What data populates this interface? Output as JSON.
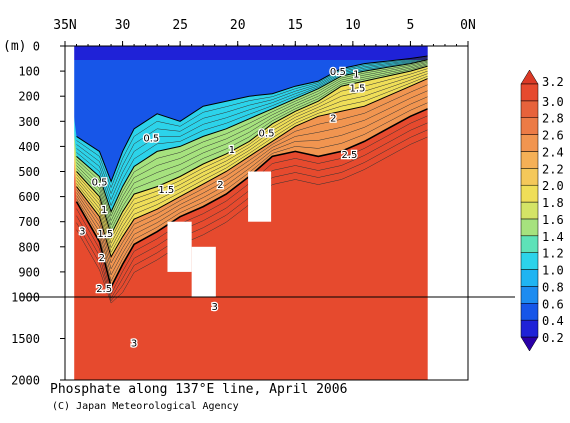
{
  "chart_data": {
    "type": "heatmap",
    "title": "Phosphate along 137°E line, April 2006",
    "credit": "(C) Japan Meteorological Agency",
    "xlabel": "",
    "ylabel": "(m)",
    "x_ticks": [
      {
        "value": 35,
        "label": "35N"
      },
      {
        "value": 30,
        "label": "30"
      },
      {
        "value": 25,
        "label": "25"
      },
      {
        "value": 20,
        "label": "20"
      },
      {
        "value": 15,
        "label": "15"
      },
      {
        "value": 10,
        "label": "10"
      },
      {
        "value": 5,
        "label": "5"
      },
      {
        "value": 0,
        "label": "0N"
      }
    ],
    "y_ticks": [
      0,
      100,
      200,
      300,
      400,
      500,
      600,
      700,
      800,
      900,
      1000,
      1500,
      2000
    ],
    "xlim": [
      35,
      0
    ],
    "ylim": [
      0,
      2000
    ],
    "y_scale": "stretched upper 1000 m",
    "colorbar": {
      "levels": [
        0.2,
        0.4,
        0.6,
        0.8,
        1.0,
        1.2,
        1.4,
        1.6,
        1.8,
        2.0,
        2.2,
        2.4,
        2.6,
        2.8,
        3.0,
        3.2
      ],
      "labels": [
        "0.2",
        "0.4",
        "0.6",
        "0.8",
        "1.0",
        "1.2",
        "1.4",
        "1.6",
        "1.8",
        "2.0",
        "2.2",
        "2.4",
        "2.6",
        "2.8",
        "3.0",
        "3.2"
      ],
      "colors": [
        "#1f22d7",
        "#1756e8",
        "#1d8cf0",
        "#1fb4f2",
        "#2cd3ea",
        "#5ee2b8",
        "#a6e27e",
        "#d4e466",
        "#efde58",
        "#f4c85a",
        "#f5b056",
        "#f19550",
        "#ec7b46",
        "#e7623b",
        "#e64a2e",
        "#dd3322"
      ],
      "under_color": "#2a00a8",
      "over_color": "#db3a26"
    },
    "contour_labels": [
      {
        "text": "0.5",
        "lat": 11.3,
        "depth": 100
      },
      {
        "text": "1",
        "lat": 9.7,
        "depth": 110
      },
      {
        "text": "1.5",
        "lat": 9.6,
        "depth": 165
      },
      {
        "text": "2",
        "lat": 11.7,
        "depth": 285
      },
      {
        "text": "2.5",
        "lat": 10.3,
        "depth": 430
      },
      {
        "text": "0.5",
        "lat": 17.5,
        "depth": 345
      },
      {
        "text": "1",
        "lat": 20.5,
        "depth": 410
      },
      {
        "text": "0.5",
        "lat": 27.5,
        "depth": 365
      },
      {
        "text": "1.5",
        "lat": 26.2,
        "depth": 570
      },
      {
        "text": "2",
        "lat": 21.5,
        "depth": 550
      },
      {
        "text": "0.5",
        "lat": 32.0,
        "depth": 540
      },
      {
        "text": "1",
        "lat": 31.6,
        "depth": 650
      },
      {
        "text": "1.5",
        "lat": 31.5,
        "depth": 745
      },
      {
        "text": "2",
        "lat": 31.8,
        "depth": 840
      },
      {
        "text": "2.5",
        "lat": 31.6,
        "depth": 965
      },
      {
        "text": "3",
        "lat": 33.5,
        "depth": 735
      },
      {
        "text": "3",
        "lat": 22.0,
        "depth": 1110
      },
      {
        "text": "3",
        "lat": 29.0,
        "depth": 1550
      }
    ],
    "missing_data": [
      {
        "lat": [
          35,
          34.2
        ],
        "depth": [
          0,
          2000
        ]
      },
      {
        "lat": [
          3.5,
          0
        ],
        "depth": [
          0,
          2000
        ]
      },
      {
        "lat": [
          26.1,
          24.0
        ],
        "depth": [
          700,
          900
        ]
      },
      {
        "lat": [
          24.0,
          21.9
        ],
        "depth": [
          800,
          1000
        ]
      },
      {
        "lat": [
          19.1,
          17.1
        ],
        "depth": [
          500,
          700
        ]
      }
    ],
    "reference_line_depth": 1000,
    "section_profile": {
      "lat": [
        34,
        32,
        31,
        30,
        29,
        27,
        25,
        23,
        21,
        19,
        17,
        15,
        13,
        11,
        9,
        7,
        5,
        3.5
      ],
      "depth_of_0.5": [
        360,
        420,
        540,
        420,
        330,
        270,
        300,
        240,
        220,
        200,
        190,
        160,
        140,
        90,
        70,
        60,
        50,
        40
      ],
      "depth_of_1.0": [
        440,
        520,
        660,
        560,
        480,
        420,
        400,
        360,
        330,
        290,
        250,
        210,
        170,
        120,
        100,
        85,
        70,
        55
      ],
      "depth_of_1.5": [
        500,
        600,
        750,
        660,
        590,
        560,
        520,
        470,
        430,
        380,
        310,
        260,
        220,
        160,
        140,
        120,
        100,
        80
      ],
      "depth_of_2.0": [
        560,
        680,
        840,
        760,
        690,
        650,
        600,
        550,
        500,
        440,
        380,
        320,
        280,
        260,
        240,
        200,
        160,
        130
      ],
      "depth_of_2.5": [
        620,
        780,
        960,
        870,
        790,
        740,
        680,
        640,
        590,
        520,
        440,
        420,
        440,
        420,
        380,
        330,
        280,
        250
      ]
    }
  }
}
